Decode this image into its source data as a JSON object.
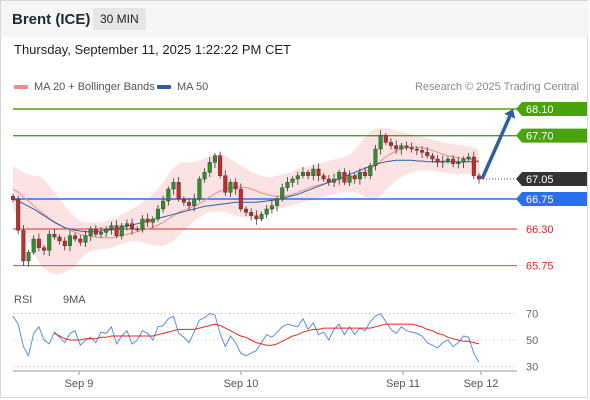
{
  "header": {
    "instrument": "Brent (ICE)",
    "timeframe": "30 MIN"
  },
  "timestamp": "Thursday, September 11, 2025 1:22:22 PM CET",
  "legend": {
    "ma20_label": "MA 20 + Bollinger Bands",
    "ma20_color": "#f28b82",
    "ma50_label": "MA 50",
    "ma50_color": "#2c5f9b",
    "credit": "Research © 2025 Trading Central"
  },
  "rsi_legend": {
    "rsi_label": "RSI",
    "rsi_color": "#5b8ee6",
    "ma_label": "9MA",
    "ma_color": "#e52620"
  },
  "chart_data": [
    {
      "type": "line",
      "title": "",
      "xlabel": "",
      "ylabel": "",
      "ylim": [
        65.55,
        68.22
      ],
      "x_ticks": [
        "Sep 9",
        "Sep 10",
        "Sep 11",
        "Sep 12"
      ],
      "levels": [
        {
          "value": 68.1,
          "label": "68.10",
          "kind": "resistance",
          "color": "#49a30b"
        },
        {
          "value": 67.7,
          "label": "67.70",
          "kind": "resistance",
          "color": "#49a30b"
        },
        {
          "value": 67.05,
          "label": "67.05",
          "kind": "current",
          "color": "#333333"
        },
        {
          "value": 66.75,
          "label": "66.75",
          "kind": "pivot",
          "color": "#2b6ff0"
        },
        {
          "value": 66.3,
          "label": "66.30",
          "kind": "support",
          "color": "#e52620"
        },
        {
          "value": 65.75,
          "label": "65.75",
          "kind": "support",
          "color": "#e52620"
        }
      ],
      "forecast_arrow": {
        "from": 67.05,
        "to": 68.1,
        "color": "#2c5f9b"
      },
      "closes": [
        66.74,
        66.28,
        65.82,
        65.95,
        66.15,
        66.02,
        65.98,
        66.22,
        66.18,
        66.12,
        66.05,
        66.2,
        66.15,
        66.1,
        66.2,
        66.3,
        66.22,
        66.25,
        66.3,
        66.35,
        66.2,
        66.35,
        66.38,
        66.3,
        66.3,
        66.45,
        66.4,
        66.45,
        66.6,
        66.72,
        66.9,
        67.0,
        66.75,
        66.7,
        66.65,
        66.75,
        67.05,
        67.15,
        67.3,
        67.4,
        67.1,
        66.85,
        67.0,
        66.9,
        66.6,
        66.55,
        66.5,
        66.45,
        66.52,
        66.6,
        66.65,
        66.75,
        66.92,
        67.0,
        67.05,
        67.1,
        67.15,
        67.1,
        67.2,
        67.1,
        67.05,
        67.0,
        67.05,
        67.15,
        67.0,
        67.1,
        67.05,
        67.15,
        67.1,
        67.25,
        67.5,
        67.7,
        67.6,
        67.55,
        67.5,
        67.55,
        67.52,
        67.5,
        67.48,
        67.45,
        67.4,
        67.35,
        67.3,
        67.32,
        67.35,
        67.28,
        67.3,
        67.35,
        67.38,
        67.1,
        67.05
      ],
      "ma20": [
        66.9,
        66.85,
        66.78,
        66.72,
        66.65,
        66.58,
        66.52,
        66.46,
        66.41,
        66.36,
        66.32,
        66.28,
        66.25,
        66.22,
        66.2,
        66.19,
        66.18,
        66.17,
        66.17,
        66.17,
        66.18,
        66.2,
        66.22,
        66.24,
        66.26,
        66.28,
        66.3,
        66.33,
        66.36,
        66.4,
        66.45,
        66.5,
        66.55,
        66.58,
        66.61,
        66.64,
        66.68,
        66.73,
        66.78,
        66.83,
        66.87,
        66.9,
        66.92,
        66.93,
        66.93,
        66.92,
        66.9,
        66.87,
        66.84,
        66.82,
        66.8,
        66.79,
        66.79,
        66.8,
        66.82,
        66.85,
        66.88,
        66.91,
        66.94,
        66.96,
        66.98,
        67.0,
        67.02,
        67.04,
        67.06,
        67.08,
        67.1,
        67.13,
        67.16,
        67.2,
        67.25,
        67.32,
        67.38,
        67.43,
        67.47,
        67.5,
        67.52,
        67.53,
        67.53,
        67.52,
        67.5,
        67.48,
        67.45,
        67.42,
        67.4,
        67.38,
        67.37,
        67.36,
        67.35,
        67.34,
        67.32
      ],
      "bb_upper": [
        67.25,
        67.2,
        67.15,
        67.12,
        67.1,
        67.1,
        67.05,
        66.95,
        66.85,
        66.75,
        66.65,
        66.55,
        66.48,
        66.42,
        66.4,
        66.4,
        66.4,
        66.4,
        66.42,
        66.45,
        66.48,
        66.52,
        66.56,
        66.6,
        66.65,
        66.7,
        66.75,
        66.82,
        66.9,
        67.0,
        67.12,
        67.22,
        67.28,
        67.3,
        67.3,
        67.3,
        67.32,
        67.36,
        67.4,
        67.42,
        67.42,
        67.4,
        67.35,
        67.3,
        67.25,
        67.2,
        67.16,
        67.13,
        67.1,
        67.08,
        67.08,
        67.1,
        67.12,
        67.14,
        67.16,
        67.2,
        67.22,
        67.24,
        67.26,
        67.28,
        67.3,
        67.32,
        67.34,
        67.36,
        67.38,
        67.42,
        67.48,
        67.58,
        67.68,
        67.76,
        67.8,
        67.82,
        67.82,
        67.8,
        67.78,
        67.76,
        67.74,
        67.72,
        67.7,
        67.68,
        67.66,
        67.64,
        67.62,
        67.6,
        67.58,
        67.57,
        67.56,
        67.55,
        67.54,
        67.52,
        67.5
      ],
      "bb_lower": [
        66.6,
        66.45,
        66.3,
        66.12,
        65.95,
        65.8,
        65.7,
        65.65,
        65.62,
        65.62,
        65.65,
        65.68,
        65.75,
        65.85,
        65.92,
        65.96,
        65.98,
        66.0,
        66.0,
        66.02,
        66.05,
        66.08,
        66.1,
        66.12,
        66.12,
        66.1,
        66.08,
        66.06,
        66.05,
        66.05,
        66.08,
        66.12,
        66.2,
        66.28,
        66.35,
        66.42,
        66.48,
        66.52,
        66.55,
        66.56,
        66.56,
        66.55,
        66.53,
        66.5,
        66.48,
        66.47,
        66.48,
        66.5,
        66.52,
        66.55,
        66.58,
        66.6,
        66.62,
        66.64,
        66.66,
        66.68,
        66.7,
        66.72,
        66.74,
        66.76,
        66.78,
        66.8,
        66.82,
        66.84,
        66.86,
        66.86,
        66.85,
        66.82,
        66.78,
        66.75,
        66.75,
        66.8,
        66.88,
        66.96,
        67.02,
        67.08,
        67.12,
        67.15,
        67.17,
        67.18,
        67.18,
        67.17,
        67.16,
        67.15,
        67.14,
        67.13,
        67.12,
        67.12,
        67.12,
        67.12,
        67.12
      ],
      "ma50": [
        66.75,
        66.72,
        66.68,
        66.64,
        66.6,
        66.55,
        66.5,
        66.45,
        66.4,
        66.36,
        66.32,
        66.3,
        66.28,
        66.27,
        66.26,
        66.26,
        66.26,
        66.27,
        66.28,
        66.29,
        66.3,
        66.32,
        66.34,
        66.36,
        66.38,
        66.4,
        66.42,
        66.44,
        66.46,
        66.48,
        66.5,
        66.52,
        66.54,
        66.56,
        66.58,
        66.6,
        66.62,
        66.64,
        66.65,
        66.66,
        66.67,
        66.68,
        66.69,
        66.7,
        66.7,
        66.7,
        66.7,
        66.7,
        66.71,
        66.72,
        66.73,
        66.74,
        66.76,
        66.78,
        66.8,
        66.82,
        66.85,
        66.88,
        66.91,
        66.94,
        66.97,
        67.0,
        67.03,
        67.06,
        67.09,
        67.12,
        67.15,
        67.18,
        67.21,
        67.24,
        67.27,
        67.29,
        67.31,
        67.32,
        67.33,
        67.33,
        67.33,
        67.33,
        67.32,
        67.32,
        67.31,
        67.31,
        67.31,
        67.31,
        67.31,
        67.31,
        67.31,
        67.31,
        67.31,
        67.31,
        67.31
      ]
    },
    {
      "type": "line",
      "title": "",
      "ylim": [
        25,
        78
      ],
      "y_ticks": [
        70,
        50,
        30
      ],
      "series": [
        {
          "name": "RSI",
          "values": [
            68,
            62,
            45,
            38,
            55,
            60,
            50,
            47,
            56,
            52,
            48,
            55,
            57,
            46,
            50,
            52,
            48,
            56,
            55,
            60,
            47,
            53,
            57,
            47,
            50,
            57,
            55,
            50,
            60,
            61,
            66,
            68,
            55,
            52,
            48,
            56,
            65,
            67,
            70,
            69,
            55,
            45,
            53,
            48,
            40,
            38,
            40,
            42,
            48,
            54,
            52,
            56,
            60,
            62,
            61,
            60,
            66,
            58,
            63,
            54,
            56,
            50,
            58,
            62,
            54,
            60,
            54,
            59,
            57,
            64,
            68,
            70,
            64,
            58,
            55,
            60,
            57,
            56,
            55,
            53,
            48,
            46,
            44,
            48,
            50,
            45,
            48,
            53,
            52,
            40,
            33
          ]
        },
        {
          "name": "9MA",
          "values": [
            null,
            null,
            null,
            null,
            null,
            null,
            null,
            null,
            55,
            53,
            51,
            50,
            50,
            50,
            51,
            51,
            51,
            52,
            52,
            53,
            53,
            53,
            53,
            53,
            53,
            53,
            53,
            53,
            54,
            55,
            56,
            57,
            58,
            58,
            58,
            58,
            59,
            60,
            61,
            62,
            61,
            59,
            57,
            55,
            53,
            52,
            50,
            48,
            47,
            46,
            46,
            47,
            49,
            51,
            53,
            54,
            56,
            57,
            58,
            58,
            59,
            59,
            59,
            59,
            59,
            59,
            59,
            59,
            59,
            59,
            60,
            61,
            62,
            62,
            62,
            62,
            62,
            62,
            61,
            60,
            58,
            57,
            55,
            54,
            52,
            51,
            50,
            49,
            49,
            48,
            47
          ]
        }
      ]
    }
  ]
}
